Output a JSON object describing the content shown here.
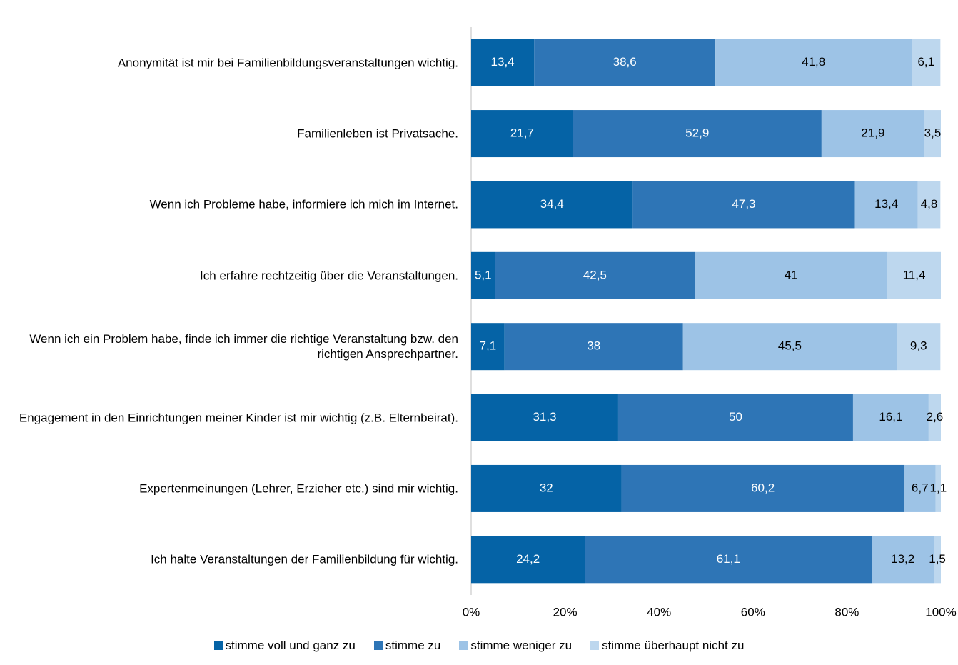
{
  "chart_data": {
    "type": "bar",
    "orientation": "horizontal",
    "stacked": true,
    "categories": [
      "Anonymität ist mir bei Familienbildungsveranstaltungen wichtig.",
      "Familienleben ist Privatsache.",
      "Wenn ich Probleme habe, informiere ich mich im Internet.",
      "Ich erfahre rechtzeitig über die Veranstaltungen.",
      "Wenn ich ein Problem habe, finde ich immer die richtige Veranstaltung bzw. den richtigen Ansprechpartner.",
      "Engagement in den Einrichtungen meiner Kinder ist mir wichtig (z.B. Elternbeirat).",
      "Expertenmeinungen (Lehrer, Erzieher etc.) sind mir wichtig.",
      "Ich halte Veranstaltungen der Familienbildung für wichtig."
    ],
    "series": [
      {
        "name": "stimme voll und ganz zu",
        "color": "#0563a6",
        "values": [
          13.4,
          21.7,
          34.4,
          5.1,
          7.1,
          31.3,
          32,
          24.2
        ],
        "value_labels": [
          "13,4",
          "21,7",
          "34,4",
          "5,1",
          "7,1",
          "31,3",
          "32",
          "24,2"
        ]
      },
      {
        "name": "stimme zu",
        "color": "#2e75b6",
        "values": [
          38.6,
          52.9,
          47.3,
          42.5,
          38,
          50,
          60.2,
          61.1
        ],
        "value_labels": [
          "38,6",
          "52,9",
          "47,3",
          "42,5",
          "38",
          "50",
          "60,2",
          "61,1"
        ]
      },
      {
        "name": "stimme weniger zu",
        "color": "#9dc3e6",
        "values": [
          41.8,
          21.9,
          13.4,
          41,
          45.5,
          16.1,
          6.7,
          13.2
        ],
        "value_labels": [
          "41,8",
          "21,9",
          "13,4",
          "41",
          "45,5",
          "16,1",
          "6,7",
          "13,2"
        ]
      },
      {
        "name": "stimme überhaupt nicht zu",
        "color": "#bdd7ee",
        "values": [
          6.1,
          3.5,
          4.8,
          11.4,
          9.3,
          2.6,
          1.1,
          1.5
        ],
        "value_labels": [
          "6,1",
          "3,5",
          "4,8",
          "11,4",
          "9,3",
          "2,6",
          "1,1",
          "1,5"
        ]
      }
    ],
    "xlim": [
      0,
      100
    ],
    "xticks": [
      {
        "value": 0,
        "label": "0%"
      },
      {
        "value": 20,
        "label": "20%"
      },
      {
        "value": 40,
        "label": "40%"
      },
      {
        "value": 60,
        "label": "60%"
      },
      {
        "value": 80,
        "label": "80%"
      },
      {
        "value": 100,
        "label": "100%"
      }
    ]
  }
}
